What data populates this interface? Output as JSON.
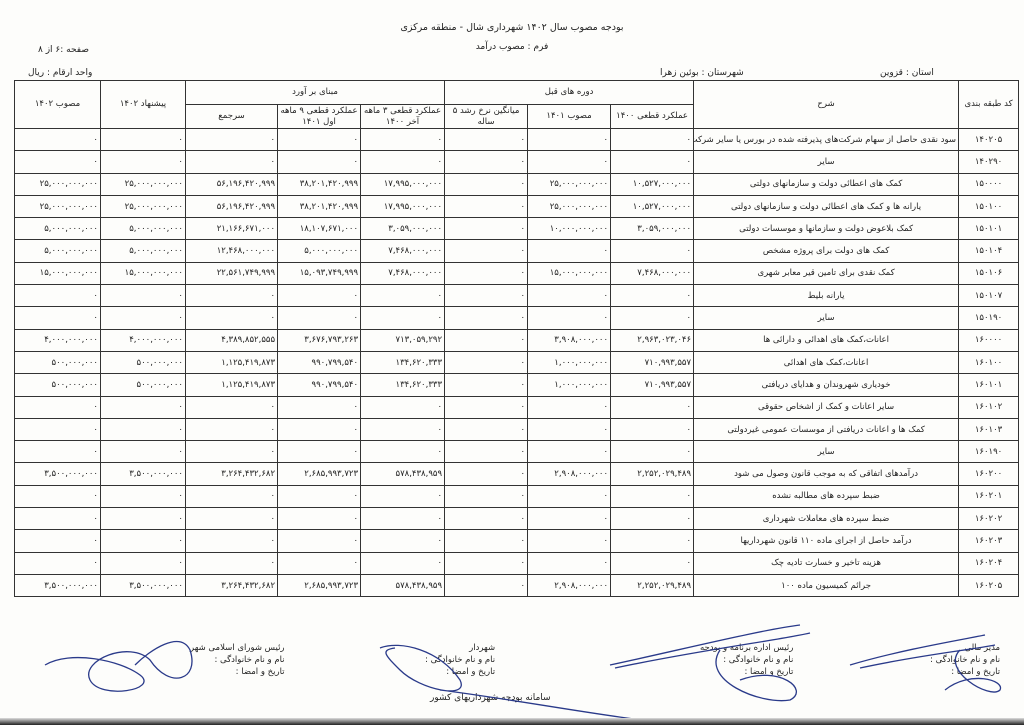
{
  "header": {
    "title": "بودجه مصوب سال ۱۴۰۲ شهرداری شال - منطقه مرکزی",
    "form": "فرم : مصوب درآمد",
    "page": "صفحه :۶ از ۸",
    "unit": "واحد ارقام : ریال",
    "province": "استان : قزوین",
    "city": "شهرستان :  بوئین زهرا"
  },
  "table": {
    "group_headers": {
      "previous": "دوره های قبل",
      "basis": "مبنای بر آورد"
    },
    "columns": {
      "code": "کد طبقه بندی",
      "desc": "شرح",
      "actual_1400": "عملکرد قطعی ۱۴۰۰",
      "approved_1401": "مصوب ۱۴۰۱",
      "avg_growth": "میانگین نرخ رشد ۵ ساله",
      "q3": "عملکرد قطعی ۳ ماهه آخر ۱۴۰۰",
      "m9": "عملکرد قطعی ۹ ماهه اول ۱۴۰۱",
      "total": "سرجمع",
      "proposal_1402": "پیشنهاد ۱۴۰۲",
      "approved_1402": "مصوب ۱۴۰۲"
    },
    "rows": [
      {
        "code": "۱۴۰۲۰۵",
        "desc": "سود نقدی حاصل از سهام شرکت‌های پذیرفته شده در بورس یا سایر شرکت ها",
        "actual_1400": "۰",
        "approved_1401": "۰",
        "avg_growth": "۰",
        "q3": "۰",
        "m9": "۰",
        "total": "۰",
        "proposal_1402": "۰",
        "approved_1402": "۰"
      },
      {
        "code": "۱۴۰۲۹۰",
        "desc": "سایر",
        "actual_1400": "۰",
        "approved_1401": "۰",
        "avg_growth": "۰",
        "q3": "۰",
        "m9": "۰",
        "total": "۰",
        "proposal_1402": "۰",
        "approved_1402": "۰"
      },
      {
        "code": "۱۵۰۰۰۰",
        "desc": "کمک های اعطائی دولت و سازمانهای دولتی",
        "actual_1400": "۱۰,۵۲۷,۰۰۰,۰۰۰",
        "approved_1401": "۲۵,۰۰۰,۰۰۰,۰۰۰",
        "avg_growth": "۰",
        "q3": "۱۷,۹۹۵,۰۰۰,۰۰۰",
        "m9": "۳۸,۲۰۱,۴۲۰,۹۹۹",
        "total": "۵۶,۱۹۶,۴۲۰,۹۹۹",
        "proposal_1402": "۲۵,۰۰۰,۰۰۰,۰۰۰",
        "approved_1402": "۲۵,۰۰۰,۰۰۰,۰۰۰"
      },
      {
        "code": "۱۵۰۱۰۰",
        "desc": "یارانه ها و کمک های اعطائی دولت و سازمانهای دولتی",
        "actual_1400": "۱۰,۵۲۷,۰۰۰,۰۰۰",
        "approved_1401": "۲۵,۰۰۰,۰۰۰,۰۰۰",
        "avg_growth": "۰",
        "q3": "۱۷,۹۹۵,۰۰۰,۰۰۰",
        "m9": "۳۸,۲۰۱,۴۲۰,۹۹۹",
        "total": "۵۶,۱۹۶,۴۲۰,۹۹۹",
        "proposal_1402": "۲۵,۰۰۰,۰۰۰,۰۰۰",
        "approved_1402": "۲۵,۰۰۰,۰۰۰,۰۰۰"
      },
      {
        "code": "۱۵۰۱۰۱",
        "desc": "کمک بلاعوض دولت و سازمانها و موسسات دولتی",
        "actual_1400": "۳,۰۵۹,۰۰۰,۰۰۰",
        "approved_1401": "۱۰,۰۰۰,۰۰۰,۰۰۰",
        "avg_growth": "۰",
        "q3": "۳,۰۵۹,۰۰۰,۰۰۰",
        "m9": "۱۸,۱۰۷,۶۷۱,۰۰۰",
        "total": "۲۱,۱۶۶,۶۷۱,۰۰۰",
        "proposal_1402": "۵,۰۰۰,۰۰۰,۰۰۰",
        "approved_1402": "۵,۰۰۰,۰۰۰,۰۰۰"
      },
      {
        "code": "۱۵۰۱۰۴",
        "desc": "کمک های دولت برای پروژه مشخص",
        "actual_1400": "۰",
        "approved_1401": "۰",
        "avg_growth": "۰",
        "q3": "۷,۴۶۸,۰۰۰,۰۰۰",
        "m9": "۵,۰۰۰,۰۰۰,۰۰۰",
        "total": "۱۲,۴۶۸,۰۰۰,۰۰۰",
        "proposal_1402": "۵,۰۰۰,۰۰۰,۰۰۰",
        "approved_1402": "۵,۰۰۰,۰۰۰,۰۰۰"
      },
      {
        "code": "۱۵۰۱۰۶",
        "desc": "کمک نقدی برای تامین قیر معابر شهری",
        "actual_1400": "۷,۴۶۸,۰۰۰,۰۰۰",
        "approved_1401": "۱۵,۰۰۰,۰۰۰,۰۰۰",
        "avg_growth": "۰",
        "q3": "۷,۴۶۸,۰۰۰,۰۰۰",
        "m9": "۱۵,۰۹۳,۷۴۹,۹۹۹",
        "total": "۲۲,۵۶۱,۷۴۹,۹۹۹",
        "proposal_1402": "۱۵,۰۰۰,۰۰۰,۰۰۰",
        "approved_1402": "۱۵,۰۰۰,۰۰۰,۰۰۰"
      },
      {
        "code": "۱۵۰۱۰۷",
        "desc": "یارانه بلیط",
        "actual_1400": "۰",
        "approved_1401": "۰",
        "avg_growth": "۰",
        "q3": "۰",
        "m9": "۰",
        "total": "۰",
        "proposal_1402": "۰",
        "approved_1402": "۰"
      },
      {
        "code": "۱۵۰۱۹۰",
        "desc": "سایر",
        "actual_1400": "۰",
        "approved_1401": "۰",
        "avg_growth": "۰",
        "q3": "۰",
        "m9": "۰",
        "total": "۰",
        "proposal_1402": "۰",
        "approved_1402": "۰"
      },
      {
        "code": "۱۶۰۰۰۰",
        "desc": "اعانات،کمک های اهدائی و دارائی ها",
        "actual_1400": "۲,۹۶۳,۰۲۳,۰۴۶",
        "approved_1401": "۳,۹۰۸,۰۰۰,۰۰۰",
        "avg_growth": "۰",
        "q3": "۷۱۳,۰۵۹,۲۹۲",
        "m9": "۳,۶۷۶,۷۹۳,۲۶۳",
        "total": "۴,۳۸۹,۸۵۲,۵۵۵",
        "proposal_1402": "۴,۰۰۰,۰۰۰,۰۰۰",
        "approved_1402": "۴,۰۰۰,۰۰۰,۰۰۰"
      },
      {
        "code": "۱۶۰۱۰۰",
        "desc": "اعانات،کمک های اهدائی",
        "actual_1400": "۷۱۰,۹۹۳,۵۵۷",
        "approved_1401": "۱,۰۰۰,۰۰۰,۰۰۰",
        "avg_growth": "۰",
        "q3": "۱۳۴,۶۲۰,۳۳۳",
        "m9": "۹۹۰,۷۹۹,۵۴۰",
        "total": "۱,۱۲۵,۴۱۹,۸۷۳",
        "proposal_1402": "۵۰۰,۰۰۰,۰۰۰",
        "approved_1402": "۵۰۰,۰۰۰,۰۰۰"
      },
      {
        "code": "۱۶۰۱۰۱",
        "desc": "خودیاری شهروندان و هدایای دریافتی",
        "actual_1400": "۷۱۰,۹۹۳,۵۵۷",
        "approved_1401": "۱,۰۰۰,۰۰۰,۰۰۰",
        "avg_growth": "۰",
        "q3": "۱۳۴,۶۲۰,۳۳۳",
        "m9": "۹۹۰,۷۹۹,۵۴۰",
        "total": "۱,۱۲۵,۴۱۹,۸۷۳",
        "proposal_1402": "۵۰۰,۰۰۰,۰۰۰",
        "approved_1402": "۵۰۰,۰۰۰,۰۰۰"
      },
      {
        "code": "۱۶۰۱۰۲",
        "desc": "سایر اعانات و کمک از اشخاص حقوقی",
        "actual_1400": "۰",
        "approved_1401": "۰",
        "avg_growth": "۰",
        "q3": "۰",
        "m9": "۰",
        "total": "۰",
        "proposal_1402": "۰",
        "approved_1402": "۰"
      },
      {
        "code": "۱۶۰۱۰۳",
        "desc": "کمک ها و اعانات دریافتی از موسسات عمومی غیردولتی",
        "actual_1400": "۰",
        "approved_1401": "۰",
        "avg_growth": "۰",
        "q3": "۰",
        "m9": "۰",
        "total": "۰",
        "proposal_1402": "۰",
        "approved_1402": "۰"
      },
      {
        "code": "۱۶۰۱۹۰",
        "desc": "سایر",
        "actual_1400": "۰",
        "approved_1401": "۰",
        "avg_growth": "۰",
        "q3": "۰",
        "m9": "۰",
        "total": "۰",
        "proposal_1402": "۰",
        "approved_1402": "۰"
      },
      {
        "code": "۱۶۰۲۰۰",
        "desc": "درآمدهای اتفاقی که به موجب قانون وصول می شود",
        "actual_1400": "۲,۲۵۲,۰۲۹,۴۸۹",
        "approved_1401": "۲,۹۰۸,۰۰۰,۰۰۰",
        "avg_growth": "۰",
        "q3": "۵۷۸,۴۳۸,۹۵۹",
        "m9": "۲,۶۸۵,۹۹۳,۷۲۳",
        "total": "۳,۲۶۴,۴۳۲,۶۸۲",
        "proposal_1402": "۳,۵۰۰,۰۰۰,۰۰۰",
        "approved_1402": "۳,۵۰۰,۰۰۰,۰۰۰"
      },
      {
        "code": "۱۶۰۲۰۱",
        "desc": "ضبط سپرده های مطالبه نشده",
        "actual_1400": "۰",
        "approved_1401": "۰",
        "avg_growth": "۰",
        "q3": "۰",
        "m9": "۰",
        "total": "۰",
        "proposal_1402": "۰",
        "approved_1402": "۰"
      },
      {
        "code": "۱۶۰۲۰۲",
        "desc": "ضبط سپرده های معاملات شهرداری",
        "actual_1400": "۰",
        "approved_1401": "۰",
        "avg_growth": "۰",
        "q3": "۰",
        "m9": "۰",
        "total": "۰",
        "proposal_1402": "۰",
        "approved_1402": "۰"
      },
      {
        "code": "۱۶۰۲۰۳",
        "desc": "درآمد حاصل از اجرای ماده ۱۱۰ قانون شهرداریها",
        "actual_1400": "۰",
        "approved_1401": "۰",
        "avg_growth": "۰",
        "q3": "۰",
        "m9": "۰",
        "total": "۰",
        "proposal_1402": "۰",
        "approved_1402": "۰"
      },
      {
        "code": "۱۶۰۲۰۴",
        "desc": "هزینه تاخیر و خسارت تادیه چک",
        "actual_1400": "۰",
        "approved_1401": "۰",
        "avg_growth": "۰",
        "q3": "۰",
        "m9": "۰",
        "total": "۰",
        "proposal_1402": "۰",
        "approved_1402": "۰"
      },
      {
        "code": "۱۶۰۲۰۵",
        "desc": "جرائم کمیسیون ماده ۱۰۰",
        "actual_1400": "۲,۲۵۲,۰۲۹,۴۸۹",
        "approved_1401": "۲,۹۰۸,۰۰۰,۰۰۰",
        "avg_growth": "۰",
        "q3": "۵۷۸,۴۳۸,۹۵۹",
        "m9": "۲,۶۸۵,۹۹۳,۷۲۳",
        "total": "۳,۲۶۴,۴۳۲,۶۸۲",
        "proposal_1402": "۳,۵۰۰,۰۰۰,۰۰۰",
        "approved_1402": "۳,۵۰۰,۰۰۰,۰۰۰"
      }
    ]
  },
  "signatures": [
    {
      "role": "مدیر مالی",
      "name": "نام و نام خانوادگی :",
      "date": "تاریخ و امضا :"
    },
    {
      "role": "رئیس اداره برنامه و بودجه",
      "name": "نام و نام خانوادگی :",
      "date": "تاریخ و امضا :"
    },
    {
      "role": "شهردار",
      "name": "نام و نام خانوادگی :",
      "date": "تاریخ و امضا :"
    },
    {
      "role": "رئیس شورای اسلامی شهر",
      "name": "نام و نام خانوادگی :",
      "date": "تاریخ و امضا :"
    }
  ],
  "footer": "سامانه بودجه شهرداریهای کشور",
  "ink_color": "#2a3a8a"
}
